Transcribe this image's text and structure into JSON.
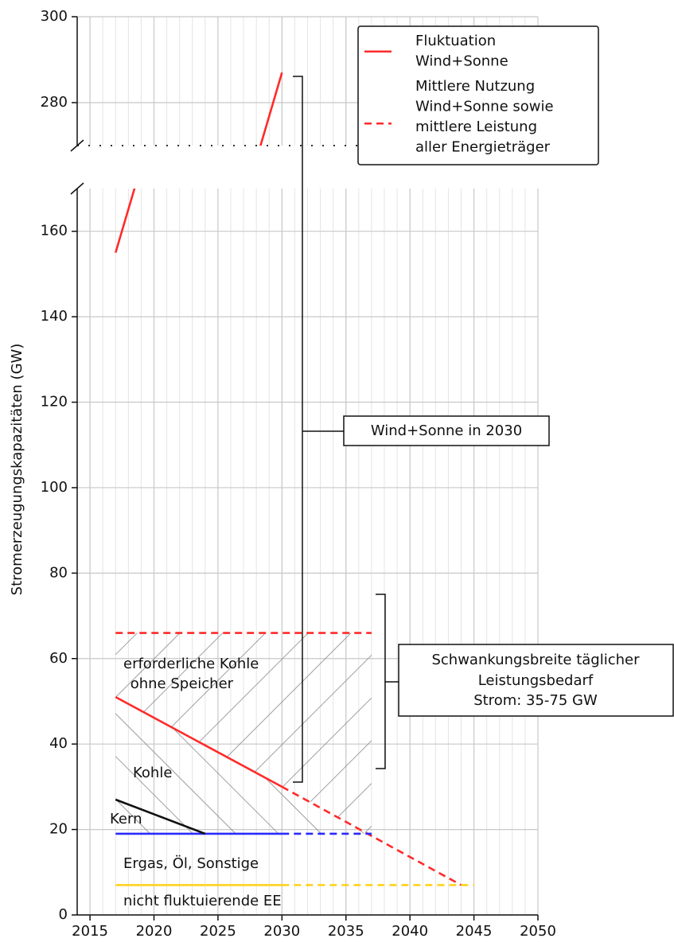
{
  "chart_data": {
    "type": "line",
    "ylabel": "Stromerzeugungskapazitäten (GW)",
    "xlim": [
      2014,
      2050
    ],
    "xticks": [
      2015,
      2020,
      2025,
      2030,
      2035,
      2040,
      2045,
      2050
    ],
    "panels": [
      {
        "ylim": [
          270,
          300
        ],
        "yticks": [
          280,
          300
        ]
      },
      {
        "ylim": [
          0,
          170
        ],
        "yticks": [
          0,
          20,
          40,
          60,
          80,
          100,
          120,
          140,
          160
        ]
      }
    ],
    "grid": true,
    "series": [
      {
        "name": "Fluktuation\nWind+Sonne",
        "color": "#ff2a2a",
        "style": "solid",
        "x": [
          2017,
          2030
        ],
        "values": [
          155,
          287
        ]
      },
      {
        "name": "Mittlere Nutzung\nWind+Sonne sowie\nmittlere Leistung\naller Energieträger",
        "color": "#ff2a2a",
        "style": "dashed",
        "x": [
          2017,
          2037
        ],
        "values": [
          66,
          66
        ]
      },
      {
        "color": "#ff2a2a",
        "style": "solid",
        "x": [
          2017,
          2030
        ],
        "values": [
          51,
          30
        ]
      },
      {
        "color": "#ff2a2a",
        "style": "dashed",
        "x": [
          2030,
          2044
        ],
        "values": [
          30,
          7
        ]
      },
      {
        "color": "#2a2aff",
        "style": "solid",
        "x": [
          2017,
          2030
        ],
        "values": [
          19,
          19
        ]
      },
      {
        "color": "#2a2aff",
        "style": "dashed",
        "x": [
          2030,
          2037
        ],
        "values": [
          19,
          19
        ]
      },
      {
        "color": "#ffd21f",
        "style": "solid",
        "x": [
          2017,
          2030
        ],
        "values": [
          7,
          7
        ]
      },
      {
        "color": "#ffd21f",
        "style": "dashed",
        "x": [
          2030,
          2045
        ],
        "values": [
          7,
          7
        ]
      },
      {
        "color": "#111111",
        "style": "solid",
        "x": [
          2017,
          2024
        ],
        "values": [
          27,
          19
        ]
      }
    ],
    "annotations": [
      "erforderliche Kohle",
      " ohne Speicher",
      "Kohle",
      "Kern",
      "Ergas, Öl, Sonstige",
      "nicht fluktuierende EE",
      "Wind+Sonne in 2030",
      "Schwankungsbreite täglicher",
      "Leistungsbedarf",
      "Strom: 35-75 GW"
    ]
  }
}
